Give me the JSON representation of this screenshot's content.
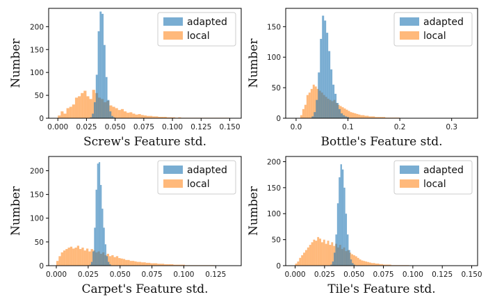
{
  "colors": {
    "adapted": "#1f77b4",
    "local": "#ff7f0e",
    "axis": "#000000",
    "legend_border": "#cccccc"
  },
  "chart_data": [
    {
      "type": "histogram",
      "xlabel": "Screw's Feature std.",
      "ylabel": "Number",
      "xlim": [
        -0.008,
        0.16
      ],
      "ylim": [
        0,
        240
      ],
      "xticks": [
        0.0,
        0.025,
        0.05,
        0.075,
        0.1,
        0.125,
        0.15
      ],
      "xtick_labels": [
        "0.000",
        "0.025",
        "0.050",
        "0.075",
        "0.100",
        "0.125",
        "0.150"
      ],
      "yticks": [
        0,
        50,
        100,
        150,
        200
      ],
      "legend_position": "top-right",
      "series": [
        {
          "name": "adapted",
          "bin_start": 0.028,
          "bin_width": 0.0017,
          "counts": [
            2,
            10,
            35,
            95,
            190,
            233,
            228,
            160,
            90,
            40,
            15,
            5,
            2
          ]
        },
        {
          "name": "local",
          "bin_start": 0.0,
          "bin_width": 0.0025,
          "counts": [
            6,
            15,
            10,
            22,
            25,
            30,
            45,
            48,
            55,
            60,
            48,
            42,
            62,
            55,
            45,
            42,
            35,
            38,
            28,
            25,
            22,
            18,
            20,
            15,
            12,
            13,
            10,
            8,
            9,
            7,
            6,
            5,
            5,
            4,
            4,
            3,
            3,
            3,
            2,
            2,
            2,
            1,
            2,
            1,
            1,
            1,
            1,
            1,
            1,
            1,
            1,
            1,
            1,
            1,
            1,
            1,
            1,
            1,
            1,
            1
          ]
        }
      ]
    },
    {
      "type": "histogram",
      "xlabel": "Bottle's Feature std.",
      "ylabel": "Number",
      "xlim": [
        -0.02,
        0.35
      ],
      "ylim": [
        0,
        180
      ],
      "xticks": [
        0.0,
        0.1,
        0.2,
        0.3
      ],
      "xtick_labels": [
        "0.0",
        "0.1",
        "0.2",
        "0.3"
      ],
      "yticks": [
        0,
        50,
        100,
        150
      ],
      "legend_position": "top-right",
      "series": [
        {
          "name": "adapted",
          "bin_start": 0.03,
          "bin_width": 0.004,
          "counts": [
            3,
            10,
            30,
            75,
            130,
            168,
            160,
            140,
            110,
            80,
            55,
            40,
            25,
            15,
            8,
            5,
            3,
            2
          ]
        },
        {
          "name": "local",
          "bin_start": 0.008,
          "bin_width": 0.004,
          "counts": [
            5,
            15,
            22,
            38,
            42,
            48,
            55,
            52,
            48,
            45,
            42,
            38,
            35,
            32,
            30,
            28,
            30,
            25,
            22,
            20,
            18,
            16,
            14,
            12,
            10,
            9,
            8,
            7,
            6,
            5,
            5,
            4,
            4,
            3,
            3,
            3,
            2,
            2,
            2,
            2,
            2,
            1,
            1,
            1,
            1,
            1,
            1,
            1
          ]
        }
      ]
    },
    {
      "type": "histogram",
      "xlabel": "Carpet's Feature std.",
      "ylabel": "Number",
      "xlim": [
        -0.006,
        0.145
      ],
      "ylim": [
        0,
        230
      ],
      "xticks": [
        0.0,
        0.025,
        0.05,
        0.075,
        0.1,
        0.125
      ],
      "xtick_labels": [
        "0.000",
        "0.025",
        "0.050",
        "0.075",
        "0.100",
        "0.125"
      ],
      "yticks": [
        0,
        50,
        100,
        150,
        200
      ],
      "legend_position": "top-right",
      "series": [
        {
          "name": "adapted",
          "bin_start": 0.026,
          "bin_width": 0.0012,
          "counts": [
            2,
            8,
            30,
            80,
            160,
            215,
            218,
            170,
            120,
            80,
            45,
            20,
            8,
            3
          ]
        },
        {
          "name": "local",
          "bin_start": 0.0,
          "bin_width": 0.0018,
          "counts": [
            10,
            20,
            28,
            32,
            35,
            38,
            40,
            36,
            38,
            42,
            35,
            38,
            32,
            36,
            30,
            35,
            32,
            28,
            30,
            25,
            28,
            22,
            25,
            20,
            22,
            18,
            20,
            16,
            15,
            14,
            12,
            12,
            10,
            10,
            9,
            8,
            8,
            7,
            7,
            6,
            6,
            5,
            5,
            5,
            4,
            4,
            4,
            3,
            3,
            3,
            3,
            2,
            2,
            2,
            2,
            2,
            1,
            1,
            1,
            1,
            1,
            1,
            1,
            1,
            1,
            1,
            1,
            1,
            1
          ]
        }
      ]
    },
    {
      "type": "histogram",
      "xlabel": "Tile's Feature std.",
      "ylabel": "Number",
      "xlim": [
        -0.008,
        0.155
      ],
      "ylim": [
        0,
        210
      ],
      "xticks": [
        0.0,
        0.025,
        0.05,
        0.075,
        0.1,
        0.125,
        0.15
      ],
      "xtick_labels": [
        "0.000",
        "0.025",
        "0.050",
        "0.075",
        "0.100",
        "0.125",
        "0.150"
      ],
      "yticks": [
        0,
        50,
        100,
        150,
        200
      ],
      "legend_position": "top-right",
      "series": [
        {
          "name": "adapted",
          "bin_start": 0.03,
          "bin_width": 0.0014,
          "counts": [
            2,
            8,
            25,
            60,
            120,
            170,
            195,
            185,
            150,
            100,
            60,
            30,
            12,
            5,
            2
          ]
        },
        {
          "name": "local",
          "bin_start": 0.0,
          "bin_width": 0.0017,
          "counts": [
            4,
            8,
            15,
            20,
            25,
            30,
            35,
            40,
            45,
            50,
            48,
            55,
            52,
            45,
            50,
            42,
            48,
            40,
            45,
            38,
            42,
            35,
            40,
            32,
            35,
            28,
            30,
            25,
            22,
            20,
            18,
            15,
            12,
            10,
            9,
            8,
            7,
            6,
            5,
            5,
            4,
            4,
            3,
            3,
            2,
            2,
            2,
            2,
            1,
            1,
            1,
            1,
            1,
            1,
            1,
            1,
            1
          ]
        }
      ]
    }
  ]
}
